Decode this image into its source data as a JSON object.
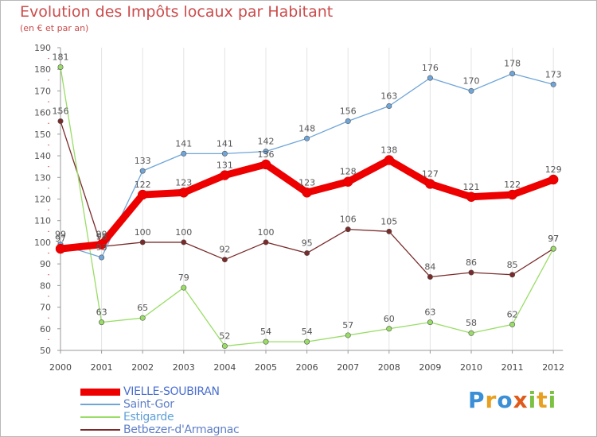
{
  "title": "Evolution des Impôts locaux par Habitant",
  "subtitle": "(en € et par an)",
  "brand": {
    "letters": [
      "P",
      "r",
      "o",
      "x",
      "i",
      "t",
      "i"
    ],
    "colors": [
      "#3a8fd6",
      "#e8a020",
      "#3a8fd6",
      "#e05a1a",
      "#7cc242",
      "#e8a020",
      "#7cc242"
    ]
  },
  "chart_data": {
    "type": "line",
    "title": "Evolution des Impôts locaux par Habitant",
    "subtitle": "(en € et par an)",
    "x": [
      "2000",
      "2001",
      "2002",
      "2003",
      "2004",
      "2005",
      "2006",
      "2007",
      "2008",
      "2009",
      "2010",
      "2011",
      "2012"
    ],
    "ylim": [
      50,
      190
    ],
    "yticks": [
      50,
      60,
      70,
      80,
      90,
      100,
      110,
      120,
      130,
      140,
      150,
      160,
      170,
      180,
      190
    ],
    "grid": "vertical",
    "legend_position": "bottom-left",
    "series": [
      {
        "name": "VIELLE-SOUBIRAN",
        "color": "#ee0000",
        "values": [
          97,
          99,
          122,
          123,
          131,
          136,
          123,
          128,
          138,
          127,
          121,
          122,
          129
        ]
      },
      {
        "name": "Saint-Gor",
        "color": "#6fa5d8",
        "values": [
          99,
          93,
          133,
          141,
          141,
          142,
          148,
          156,
          163,
          176,
          170,
          178,
          173
        ]
      },
      {
        "name": "Estigarde",
        "color": "#99dd66",
        "values": [
          181,
          63,
          65,
          79,
          52,
          54,
          54,
          57,
          60,
          63,
          58,
          62,
          97
        ]
      },
      {
        "name": "Betbezer-d'Armagnac",
        "color": "#7a2a2a",
        "values": [
          156,
          98,
          100,
          100,
          92,
          100,
          95,
          106,
          105,
          84,
          86,
          85,
          97
        ]
      }
    ]
  }
}
